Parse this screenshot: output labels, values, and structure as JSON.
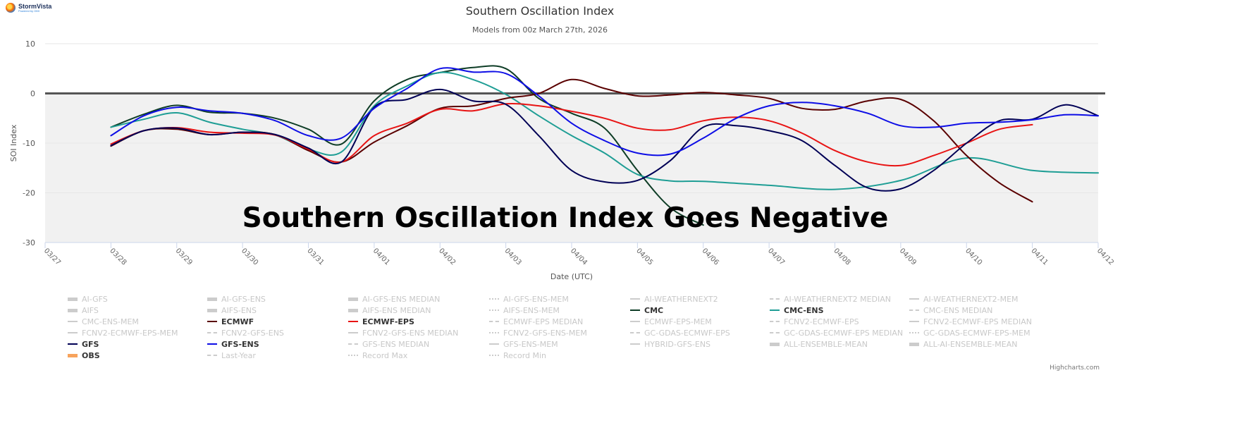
{
  "logo": {
    "brand": "StormVista",
    "sub": "Powered by OMI"
  },
  "credits": "Highcharts.com",
  "banner": "Southern Oscillation Index Goes Negative",
  "colors": {
    "band": "#f1f1f1",
    "zero": "#555555",
    "grid": "#e6e6e6",
    "axis": "#ccd6eb"
  },
  "chart_data": {
    "type": "line",
    "title": "Southern Oscillation Index",
    "subtitle": "Models from 00z March 27th, 2026",
    "xlabel": "Date (UTC)",
    "ylabel": "SOI Index",
    "ylim": [
      -30,
      10
    ],
    "yticks": [
      10,
      0,
      -10,
      -20,
      -30
    ],
    "xlim": [
      0,
      16
    ],
    "categories": [
      "03/27",
      "03/28",
      "03/29",
      "03/30",
      "03/31",
      "04/01",
      "04/02",
      "04/03",
      "04/04",
      "04/05",
      "04/06",
      "04/07",
      "04/08",
      "04/09",
      "04/10",
      "04/11",
      "04/12"
    ],
    "shaded_band": [
      -30,
      0
    ],
    "zero_line": 0,
    "series": [
      {
        "name": "CMC",
        "color": "#0e3d26",
        "x": [
          1,
          1.5,
          2,
          2.5,
          3,
          3.5,
          4,
          4.5,
          5,
          5.5,
          6,
          6.5,
          7,
          7.5,
          8,
          8.5,
          9,
          9.5,
          10
        ],
        "values": [
          -6.8,
          -4.2,
          -2.4,
          -3.8,
          -4.0,
          -5.0,
          -7.2,
          -10.2,
          -1.5,
          2.8,
          4.2,
          5.2,
          5.0,
          -1.0,
          -4.0,
          -7.0,
          -15.5,
          -23.0,
          -26.5
        ]
      },
      {
        "name": "CMC-ENS",
        "color": "#1f9e95",
        "x": [
          1,
          1.5,
          2,
          2.5,
          3,
          3.5,
          4,
          4.5,
          5,
          5.5,
          6,
          6.5,
          7,
          7.5,
          8,
          8.5,
          9,
          9.5,
          10,
          11,
          12,
          13,
          14,
          15,
          16
        ],
        "values": [
          -6.8,
          -5.2,
          -3.9,
          -5.8,
          -7.2,
          -8.4,
          -11.2,
          -11.8,
          -2.5,
          1.5,
          4.2,
          2.8,
          -0.2,
          -4.5,
          -8.5,
          -12.0,
          -16.3,
          -17.6,
          -17.7,
          -18.5,
          -19.3,
          -17.5,
          -13.0,
          -15.5,
          -16.0
        ]
      },
      {
        "name": "ECMWF",
        "color": "#5a0000",
        "x": [
          1,
          1.5,
          2,
          2.5,
          3,
          3.5,
          4,
          4.5,
          5,
          5.5,
          6,
          6.5,
          7,
          7.5,
          8,
          8.5,
          9,
          9.5,
          10,
          10.5,
          11,
          11.5,
          12,
          12.5,
          13,
          13.5,
          14,
          14.5,
          15
        ],
        "values": [
          -10.6,
          -7.5,
          -7.2,
          -8.3,
          -7.8,
          -8.3,
          -11.5,
          -13.8,
          -9.8,
          -6.5,
          -3.0,
          -2.5,
          -1.0,
          0.0,
          2.8,
          1.0,
          -0.5,
          -0.3,
          0.2,
          -0.3,
          -1.0,
          -3.0,
          -3.2,
          -1.5,
          -1.2,
          -5.5,
          -12.5,
          -18.0,
          -21.8
        ]
      },
      {
        "name": "ECMWF-EPS",
        "color": "#e81414",
        "x": [
          1,
          1.5,
          2,
          2.5,
          3,
          3.5,
          4,
          4.5,
          5,
          5.5,
          6,
          6.5,
          7,
          7.5,
          8,
          8.5,
          9,
          9.5,
          10,
          10.5,
          11,
          11.5,
          12,
          12.5,
          13,
          13.5,
          14,
          14.5,
          15
        ],
        "values": [
          -10.2,
          -7.5,
          -6.9,
          -7.8,
          -8.0,
          -8.4,
          -11.2,
          -13.8,
          -8.5,
          -6.0,
          -3.2,
          -3.5,
          -2.1,
          -2.5,
          -3.6,
          -5.0,
          -7.0,
          -7.3,
          -5.5,
          -4.8,
          -5.5,
          -8.0,
          -11.5,
          -13.8,
          -14.5,
          -12.5,
          -10.0,
          -7.2,
          -6.3
        ]
      },
      {
        "name": "GFS",
        "color": "#000055",
        "x": [
          1,
          1.5,
          2,
          2.5,
          3,
          3.5,
          4,
          4.5,
          5,
          5.5,
          6,
          6.5,
          7,
          7.5,
          8,
          8.5,
          9,
          9.5,
          10,
          10.5,
          11,
          11.5,
          12,
          12.5,
          13,
          13.5,
          14,
          14.5,
          15,
          15.5,
          16
        ],
        "values": [
          -10.5,
          -7.5,
          -7.0,
          -8.3,
          -7.8,
          -8.3,
          -11.0,
          -13.8,
          -2.8,
          -1.2,
          0.8,
          -1.5,
          -2.2,
          -8.5,
          -15.5,
          -17.8,
          -17.5,
          -13.5,
          -6.8,
          -6.5,
          -7.5,
          -9.5,
          -14.5,
          -19.0,
          -19.2,
          -15.5,
          -10.0,
          -5.5,
          -5.2,
          -2.3,
          -4.5
        ]
      },
      {
        "name": "GFS-ENS",
        "color": "#0e0ee6",
        "x": [
          1,
          1.5,
          2,
          2.5,
          3,
          3.5,
          4,
          4.5,
          5,
          5.5,
          6,
          6.5,
          7,
          7.5,
          8,
          8.5,
          9,
          9.5,
          10,
          10.5,
          11,
          11.5,
          12,
          12.5,
          13,
          13.5,
          14,
          14.5,
          15,
          15.5,
          16
        ],
        "values": [
          -8.5,
          -4.5,
          -2.8,
          -3.5,
          -4.0,
          -5.5,
          -8.5,
          -9.0,
          -3.0,
          1.0,
          5.0,
          4.3,
          4.0,
          -0.5,
          -6.0,
          -9.5,
          -12.0,
          -12.2,
          -9.0,
          -5.0,
          -2.5,
          -1.8,
          -2.5,
          -4.0,
          -6.5,
          -6.8,
          -6.0,
          -5.8,
          -5.3,
          -4.3,
          -4.5
        ]
      }
    ]
  },
  "legend": [
    [
      {
        "label": "AI-GFS",
        "state": "off",
        "style": "bar"
      },
      {
        "label": "AI-GFS-ENS",
        "state": "off",
        "style": "bar"
      },
      {
        "label": "AI-GFS-ENS MEDIAN",
        "state": "off",
        "style": "bar"
      },
      {
        "label": "AI-GFS-ENS-MEM",
        "state": "off",
        "style": "dot"
      },
      {
        "label": "AI-WEATHERNEXT2",
        "state": "off",
        "style": "solid"
      },
      {
        "label": "AI-WEATHERNEXT2 MEDIAN",
        "state": "off",
        "style": "dash"
      },
      {
        "label": "AI-WEATHERNEXT2-MEM",
        "state": "off",
        "style": "solid"
      }
    ],
    [
      {
        "label": "AIFS",
        "state": "off",
        "style": "bar"
      },
      {
        "label": "AIFS-ENS",
        "state": "off",
        "style": "bar"
      },
      {
        "label": "AIFS-ENS MEDIAN",
        "state": "off",
        "style": "bar"
      },
      {
        "label": "AIFS-ENS-MEM",
        "state": "off",
        "style": "dot"
      },
      {
        "label": "CMC",
        "state": "on",
        "style": "solid",
        "color": "#0e3d26"
      },
      {
        "label": "CMC-ENS",
        "state": "on",
        "style": "solid",
        "color": "#1f9e95"
      },
      {
        "label": "CMC-ENS MEDIAN",
        "state": "off",
        "style": "dash"
      }
    ],
    [
      {
        "label": "CMC-ENS-MEM",
        "state": "off",
        "style": "solid"
      },
      {
        "label": "ECMWF",
        "state": "on",
        "style": "solid",
        "color": "#5a0000"
      },
      {
        "label": "ECMWF-EPS",
        "state": "on",
        "style": "solid",
        "color": "#e81414"
      },
      {
        "label": "ECMWF-EPS MEDIAN",
        "state": "off",
        "style": "dash"
      },
      {
        "label": "ECMWF-EPS-MEM",
        "state": "off",
        "style": "solid"
      },
      {
        "label": "FCNV2-ECMWF-EPS",
        "state": "off",
        "style": "dash"
      },
      {
        "label": "FCNV2-ECMWF-EPS MEDIAN",
        "state": "off",
        "style": "solid"
      }
    ],
    [
      {
        "label": "FCNV2-ECMWF-EPS-MEM",
        "state": "off",
        "style": "solid"
      },
      {
        "label": "FCNV2-GFS-ENS",
        "state": "off",
        "style": "dash"
      },
      {
        "label": "FCNV2-GFS-ENS MEDIAN",
        "state": "off",
        "style": "solid"
      },
      {
        "label": "FCNV2-GFS-ENS-MEM",
        "state": "off",
        "style": "dot"
      },
      {
        "label": "GC-GDAS-ECMWF-EPS",
        "state": "off",
        "style": "dash"
      },
      {
        "label": "GC-GDAS-ECMWF-EPS MEDIAN",
        "state": "off",
        "style": "dash"
      },
      {
        "label": "GC-GDAS-ECMWF-EPS-MEM",
        "state": "off",
        "style": "dot"
      }
    ],
    [
      {
        "label": "GFS",
        "state": "on",
        "style": "solid",
        "color": "#000055"
      },
      {
        "label": "GFS-ENS",
        "state": "on",
        "style": "solid",
        "color": "#0e0ee6"
      },
      {
        "label": "GFS-ENS MEDIAN",
        "state": "off",
        "style": "dash"
      },
      {
        "label": "GFS-ENS-MEM",
        "state": "off",
        "style": "solid"
      },
      {
        "label": "HYBRID-GFS-ENS",
        "state": "off",
        "style": "solid"
      },
      {
        "label": "ALL-ENSEMBLE-MEAN",
        "state": "off",
        "style": "bar"
      },
      {
        "label": "ALL-AI-ENSEMBLE-MEAN",
        "state": "off",
        "style": "bar"
      }
    ],
    [
      {
        "label": "OBS",
        "state": "on",
        "style": "bar",
        "color": "#f7a35c"
      },
      {
        "label": "Last-Year",
        "state": "off",
        "style": "dash"
      },
      {
        "label": "Record Max",
        "state": "off",
        "style": "dot"
      },
      {
        "label": "Record Min",
        "state": "off",
        "style": "dot"
      }
    ]
  ]
}
